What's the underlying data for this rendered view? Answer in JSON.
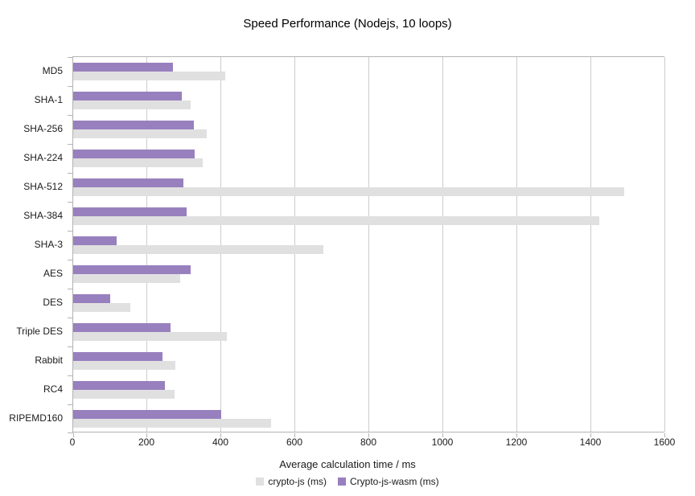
{
  "title": "Speed Performance (Nodejs, 10 loops)",
  "chart_data": {
    "type": "bar",
    "orientation": "horizontal",
    "title": "Speed Performance (Nodejs, 10 loops)",
    "xlabel": "Average calculation time / ms",
    "ylabel": "",
    "xlim": [
      0,
      1600
    ],
    "xticks": [
      0,
      200,
      400,
      600,
      800,
      1000,
      1200,
      1400,
      1600
    ],
    "grid": true,
    "legend_position": "bottom",
    "categories": [
      "MD5",
      "SHA-1",
      "SHA-256",
      "SHA-224",
      "SHA-512",
      "SHA-384",
      "SHA-3",
      "AES",
      "DES",
      "Triple DES",
      "Rabbit",
      "RC4",
      "RIPEMD160"
    ],
    "series": [
      {
        "name": "crypto-js (ms)",
        "color": "#e0e0e0",
        "values": [
          411,
          317,
          361,
          351,
          1489,
          1421,
          675,
          290,
          154,
          415,
          276,
          274,
          534
        ]
      },
      {
        "name": "Crypto-js-wasm (ms)",
        "color": "#9880be",
        "values": [
          270,
          294,
          327,
          328,
          298,
          307,
          117,
          318,
          99,
          264,
          242,
          248,
          400
        ]
      }
    ],
    "colors": {
      "axis_line": "#b3b3b3",
      "gridline": "#cccccc",
      "text": "#1a1a1a",
      "title_text": "#000000",
      "background": "#ffffff"
    }
  }
}
